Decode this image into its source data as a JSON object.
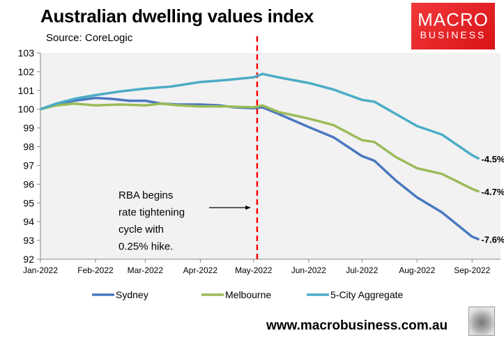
{
  "header": {
    "title": "Australian dwelling values index",
    "source": "Source: CoreLogic"
  },
  "logo": {
    "line1": "MACRO",
    "line2": "BUSINESS",
    "color": "#e3201f"
  },
  "footer": {
    "url": "www.macrobusiness.com.au"
  },
  "chart_data": {
    "type": "line",
    "title": "Australian dwelling values index",
    "ylim": [
      92,
      103
    ],
    "yticks": [
      "92",
      "93",
      "94",
      "95",
      "96",
      "97",
      "98",
      "99",
      "100",
      "101",
      "102",
      "103"
    ],
    "xlim": [
      "2022-01-01",
      "2022-09-17"
    ],
    "xticks": [
      {
        "date": "2022-01-01",
        "label": "Jan-2022"
      },
      {
        "date": "2022-02-01",
        "label": "Feb-2022"
      },
      {
        "date": "2022-03-01",
        "label": "Mar-2022"
      },
      {
        "date": "2022-04-01",
        "label": "Apr-2022"
      },
      {
        "date": "2022-05-01",
        "label": "May-2022"
      },
      {
        "date": "2022-06-01",
        "label": "Jun-2022"
      },
      {
        "date": "2022-07-01",
        "label": "Jul-2022"
      },
      {
        "date": "2022-08-01",
        "label": "Aug-2022"
      },
      {
        "date": "2022-09-01",
        "label": "Sep-2022"
      }
    ],
    "grid": false,
    "legend": "bottom",
    "series": [
      {
        "name": "Sydney",
        "color": "#4a78bf",
        "end_label": "-7.6%",
        "points": [
          [
            "2022-01-01",
            100.0
          ],
          [
            "2022-01-10",
            100.25
          ],
          [
            "2022-01-20",
            100.45
          ],
          [
            "2022-02-01",
            100.6
          ],
          [
            "2022-02-10",
            100.55
          ],
          [
            "2022-02-20",
            100.45
          ],
          [
            "2022-03-01",
            100.45
          ],
          [
            "2022-03-10",
            100.3
          ],
          [
            "2022-03-20",
            100.25
          ],
          [
            "2022-04-01",
            100.25
          ],
          [
            "2022-04-12",
            100.2
          ],
          [
            "2022-04-20",
            100.1
          ],
          [
            "2022-05-01",
            100.05
          ],
          [
            "2022-05-06",
            100.1
          ],
          [
            "2022-05-15",
            99.75
          ],
          [
            "2022-06-01",
            99.05
          ],
          [
            "2022-06-15",
            98.5
          ],
          [
            "2022-07-01",
            97.5
          ],
          [
            "2022-07-08",
            97.25
          ],
          [
            "2022-07-20",
            96.2
          ],
          [
            "2022-08-01",
            95.3
          ],
          [
            "2022-08-15",
            94.5
          ],
          [
            "2022-09-01",
            93.2
          ],
          [
            "2022-09-05",
            93.05
          ]
        ]
      },
      {
        "name": "Melbourne",
        "color": "#9bbb59",
        "end_label": "-4.7%",
        "points": [
          [
            "2022-01-01",
            100.0
          ],
          [
            "2022-01-10",
            100.2
          ],
          [
            "2022-01-20",
            100.3
          ],
          [
            "2022-02-01",
            100.2
          ],
          [
            "2022-02-15",
            100.25
          ],
          [
            "2022-03-01",
            100.2
          ],
          [
            "2022-03-10",
            100.3
          ],
          [
            "2022-03-20",
            100.2
          ],
          [
            "2022-04-01",
            100.15
          ],
          [
            "2022-04-15",
            100.15
          ],
          [
            "2022-05-01",
            100.1
          ],
          [
            "2022-05-06",
            100.2
          ],
          [
            "2022-05-15",
            99.85
          ],
          [
            "2022-06-01",
            99.5
          ],
          [
            "2022-06-15",
            99.15
          ],
          [
            "2022-07-01",
            98.35
          ],
          [
            "2022-07-08",
            98.25
          ],
          [
            "2022-07-20",
            97.45
          ],
          [
            "2022-08-01",
            96.85
          ],
          [
            "2022-08-15",
            96.55
          ],
          [
            "2022-09-01",
            95.75
          ],
          [
            "2022-09-05",
            95.6
          ]
        ]
      },
      {
        "name": "5-City Aggregate",
        "color": "#4bacc6",
        "end_label": "-4.5%",
        "points": [
          [
            "2022-01-01",
            100.0
          ],
          [
            "2022-01-10",
            100.3
          ],
          [
            "2022-01-20",
            100.55
          ],
          [
            "2022-02-01",
            100.75
          ],
          [
            "2022-02-15",
            100.95
          ],
          [
            "2022-03-01",
            101.1
          ],
          [
            "2022-03-15",
            101.2
          ],
          [
            "2022-04-01",
            101.45
          ],
          [
            "2022-04-15",
            101.55
          ],
          [
            "2022-05-01",
            101.7
          ],
          [
            "2022-05-06",
            101.88
          ],
          [
            "2022-05-15",
            101.7
          ],
          [
            "2022-06-01",
            101.4
          ],
          [
            "2022-06-15",
            101.05
          ],
          [
            "2022-07-01",
            100.5
          ],
          [
            "2022-07-08",
            100.4
          ],
          [
            "2022-07-20",
            99.75
          ],
          [
            "2022-08-01",
            99.1
          ],
          [
            "2022-08-15",
            98.65
          ],
          [
            "2022-09-01",
            97.55
          ],
          [
            "2022-09-05",
            97.35
          ]
        ]
      }
    ],
    "event_line": {
      "date": "2022-05-03",
      "color": "#ff0000"
    },
    "annotation": {
      "lines": [
        "RBA begins",
        "rate tightening",
        "cycle with",
        "0.25% hike."
      ]
    }
  }
}
